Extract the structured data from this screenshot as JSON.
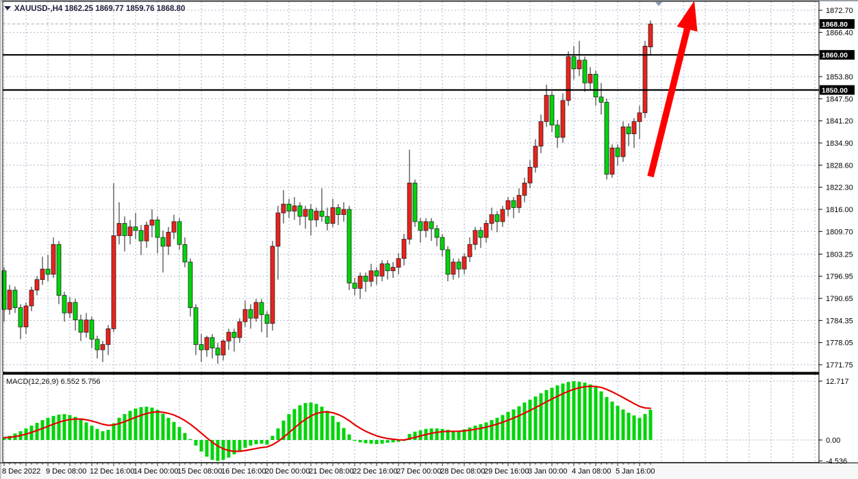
{
  "header": {
    "dropdown_icon": "symbol-dropdown-triangle",
    "symbol": "XAUUSD-",
    "timeframe": "H4",
    "open": "1862.25",
    "high": "1869.77",
    "low": "1859.76",
    "close": "1868.80"
  },
  "colors": {
    "bull_candle": "#e8231c",
    "bear_candle": "#00d40a",
    "wick": "#1a1a1a",
    "grid": "#a9b6c9",
    "panel_border": "#000000",
    "sr_line": "#000000",
    "bid_line": "#9aa6b4",
    "macd_bar": "#00d40a",
    "macd_signal": "#e60000",
    "arrow": "#ff0000",
    "axis_label_bg": "#000000",
    "axis_label_text": "#ffffff",
    "shift_marker": "#8a99b5",
    "strip_bg": "#f7f7f7"
  },
  "price_axis": {
    "ticks": [
      "1872.70",
      "1866.40",
      "1853.80",
      "1847.50",
      "1841.20",
      "1834.90",
      "1828.60",
      "1822.30",
      "1816.00",
      "1809.70",
      "1803.25",
      "1796.95",
      "1790.65",
      "1784.35",
      "1778.05",
      "1771.75"
    ],
    "highlight_labels": [
      {
        "text": "1868.80",
        "price": 1868.8,
        "kind": "bid-price-label"
      },
      {
        "text": "1860.00",
        "price": 1860.0,
        "kind": "line-price-label"
      },
      {
        "text": "1850.00",
        "price": 1850.0,
        "kind": "line-price-label"
      }
    ]
  },
  "macd_axis": {
    "ticks": [
      {
        "text": "12.717",
        "value": 12.717
      },
      {
        "text": "0.00",
        "value": 0
      },
      {
        "text": "-4.536",
        "value": -4.536
      }
    ]
  },
  "time_axis": {
    "labels": [
      {
        "text": "8 Dec 2022",
        "index": 0
      },
      {
        "text": "9 Dec 08:00",
        "index": 8
      },
      {
        "text": "12 Dec 16:00",
        "index": 16
      },
      {
        "text": "14 Dec 00:00",
        "index": 24
      },
      {
        "text": "15 Dec 08:00",
        "index": 32
      },
      {
        "text": "16 Dec 16:00",
        "index": 40
      },
      {
        "text": "20 Dec 00:00",
        "index": 48
      },
      {
        "text": "21 Dec 08:00",
        "index": 56
      },
      {
        "text": "22 Dec 16:00",
        "index": 64
      },
      {
        "text": "27 Dec 00:00",
        "index": 72
      },
      {
        "text": "28 Dec 08:00",
        "index": 80
      },
      {
        "text": "29 Dec 16:00",
        "index": 88
      },
      {
        "text": "3 Jan 00:00",
        "index": 96
      },
      {
        "text": "4 Jan 08:00",
        "index": 104
      },
      {
        "text": "5 Jan 16:00",
        "index": 112
      }
    ]
  },
  "macd_label": {
    "name": "MACD(12,26,9)",
    "macd_value": "6.552",
    "signal_value": "5.756"
  },
  "annotation": {
    "arrow": "thick red up-right arrow from 1850 line area to top of chart",
    "shift_marker": "small gray-blue down triangle at top right (chart shift marker)"
  },
  "chart_data": {
    "type": "candlestick",
    "title": "XAUUSD- H4 gold price chart with MACD(12,26,9)",
    "symbol": "XAUUSD-",
    "timeframe": "H4",
    "note": "bullish candles drawn red, bearish candles drawn green (inverted palette); MACD histogram all green with red signal line",
    "price_axis_range": [
      1771.75,
      1872.7
    ],
    "horizontal_lines": [
      1860.0,
      1850.0
    ],
    "bid_price": 1868.8,
    "ohlc_title_values": [
      1862.25,
      1869.77,
      1859.76,
      1868.8
    ],
    "candles": [
      [
        1798.5,
        1799.5,
        1784.0,
        1787.5
      ],
      [
        1787.5,
        1794.5,
        1786.0,
        1793.0
      ],
      [
        1793.0,
        1794.0,
        1786.5,
        1788.0
      ],
      [
        1788.0,
        1789.0,
        1779.0,
        1782.5
      ],
      [
        1782.5,
        1789.5,
        1780.5,
        1788.5
      ],
      [
        1788.5,
        1794.0,
        1787.0,
        1793.0
      ],
      [
        1793.0,
        1797.0,
        1791.5,
        1796.0
      ],
      [
        1796.0,
        1802.5,
        1794.5,
        1799.0
      ],
      [
        1799.0,
        1803.0,
        1795.5,
        1797.5
      ],
      [
        1797.5,
        1808.0,
        1796.5,
        1806.0
      ],
      [
        1806.0,
        1807.0,
        1789.0,
        1791.5
      ],
      [
        1791.5,
        1792.5,
        1784.0,
        1786.5
      ],
      [
        1786.5,
        1791.0,
        1785.0,
        1789.5
      ],
      [
        1789.5,
        1790.5,
        1781.5,
        1784.5
      ],
      [
        1784.5,
        1786.0,
        1778.5,
        1781.0
      ],
      [
        1781.0,
        1786.5,
        1779.5,
        1784.5
      ],
      [
        1784.5,
        1785.5,
        1776.5,
        1779.0
      ],
      [
        1779.0,
        1780.0,
        1773.5,
        1776.0
      ],
      [
        1776.0,
        1778.5,
        1772.5,
        1777.5
      ],
      [
        1777.5,
        1783.0,
        1774.5,
        1782.0
      ],
      [
        1782.0,
        1823.5,
        1781.0,
        1808.5
      ],
      [
        1808.5,
        1818.0,
        1806.0,
        1812.0
      ],
      [
        1812.0,
        1814.0,
        1804.0,
        1808.5
      ],
      [
        1808.5,
        1813.0,
        1806.0,
        1811.0
      ],
      [
        1811.0,
        1815.0,
        1807.5,
        1810.0
      ],
      [
        1810.0,
        1811.5,
        1803.0,
        1807.0
      ],
      [
        1807.0,
        1812.5,
        1805.0,
        1811.5
      ],
      [
        1811.5,
        1816.0,
        1808.0,
        1813.0
      ],
      [
        1813.0,
        1814.0,
        1803.5,
        1808.0
      ],
      [
        1808.0,
        1810.0,
        1798.0,
        1805.5
      ],
      [
        1805.5,
        1811.0,
        1803.0,
        1809.5
      ],
      [
        1809.5,
        1814.5,
        1807.5,
        1812.5
      ],
      [
        1812.5,
        1813.5,
        1804.5,
        1806.0
      ],
      [
        1806.0,
        1808.0,
        1799.5,
        1801.0
      ],
      [
        1801.0,
        1802.0,
        1785.5,
        1788.0
      ],
      [
        1788.0,
        1789.0,
        1774.5,
        1777.5
      ],
      [
        1777.5,
        1780.5,
        1772.5,
        1776.0
      ],
      [
        1776.0,
        1780.0,
        1774.0,
        1779.5
      ],
      [
        1779.5,
        1780.5,
        1773.5,
        1776.5
      ],
      [
        1776.5,
        1778.0,
        1772.0,
        1774.5
      ],
      [
        1774.5,
        1779.0,
        1773.0,
        1778.5
      ],
      [
        1778.5,
        1782.0,
        1776.0,
        1781.0
      ],
      [
        1781.0,
        1782.0,
        1775.5,
        1779.5
      ],
      [
        1779.5,
        1785.0,
        1778.0,
        1784.0
      ],
      [
        1784.0,
        1790.0,
        1782.5,
        1787.5
      ],
      [
        1787.5,
        1789.0,
        1782.0,
        1785.0
      ],
      [
        1785.0,
        1790.5,
        1784.0,
        1789.5
      ],
      [
        1789.5,
        1790.5,
        1781.0,
        1786.0
      ],
      [
        1786.0,
        1787.0,
        1779.5,
        1783.5
      ],
      [
        1783.5,
        1807.0,
        1781.5,
        1805.5
      ],
      [
        1805.5,
        1817.0,
        1796.0,
        1815.0
      ],
      [
        1815.0,
        1821.5,
        1812.0,
        1817.5
      ],
      [
        1817.5,
        1819.0,
        1813.5,
        1815.5
      ],
      [
        1815.5,
        1819.5,
        1813.0,
        1817.0
      ],
      [
        1817.0,
        1818.0,
        1811.5,
        1814.0
      ],
      [
        1814.0,
        1817.0,
        1810.5,
        1816.0
      ],
      [
        1816.0,
        1817.5,
        1808.5,
        1813.0
      ],
      [
        1813.0,
        1816.5,
        1811.0,
        1815.5
      ],
      [
        1815.5,
        1822.0,
        1812.5,
        1814.0
      ],
      [
        1814.0,
        1816.5,
        1810.0,
        1812.0
      ],
      [
        1812.0,
        1819.0,
        1811.0,
        1816.5
      ],
      [
        1816.5,
        1817.5,
        1811.5,
        1814.5
      ],
      [
        1814.5,
        1818.0,
        1812.5,
        1816.0
      ],
      [
        1816.0,
        1817.0,
        1793.0,
        1795.0
      ],
      [
        1795.0,
        1796.5,
        1791.5,
        1793.5
      ],
      [
        1793.5,
        1798.0,
        1790.5,
        1797.0
      ],
      [
        1797.0,
        1798.0,
        1792.5,
        1795.5
      ],
      [
        1795.5,
        1800.5,
        1794.0,
        1798.5
      ],
      [
        1798.5,
        1799.5,
        1794.5,
        1797.0
      ],
      [
        1797.0,
        1801.5,
        1795.5,
        1800.5
      ],
      [
        1800.5,
        1801.5,
        1796.0,
        1798.5
      ],
      [
        1798.5,
        1801.0,
        1796.5,
        1799.5
      ],
      [
        1799.5,
        1803.5,
        1797.5,
        1802.0
      ],
      [
        1802.0,
        1809.0,
        1800.0,
        1807.5
      ],
      [
        1807.5,
        1833.0,
        1806.0,
        1823.5
      ],
      [
        1823.5,
        1824.5,
        1811.0,
        1812.5
      ],
      [
        1812.5,
        1813.5,
        1806.5,
        1810.0
      ],
      [
        1810.0,
        1813.5,
        1808.0,
        1812.5
      ],
      [
        1812.5,
        1813.5,
        1807.0,
        1810.5
      ],
      [
        1810.5,
        1811.5,
        1805.5,
        1808.0
      ],
      [
        1808.0,
        1809.0,
        1802.5,
        1804.5
      ],
      [
        1804.5,
        1805.5,
        1795.5,
        1797.5
      ],
      [
        1797.5,
        1802.0,
        1796.0,
        1801.0
      ],
      [
        1801.0,
        1802.0,
        1796.5,
        1799.0
      ],
      [
        1799.0,
        1803.5,
        1797.5,
        1802.5
      ],
      [
        1802.5,
        1808.0,
        1801.0,
        1806.0
      ],
      [
        1806.0,
        1811.0,
        1804.5,
        1810.0
      ],
      [
        1810.0,
        1811.0,
        1805.0,
        1808.0
      ],
      [
        1808.0,
        1813.0,
        1806.5,
        1812.0
      ],
      [
        1812.0,
        1816.5,
        1810.0,
        1814.5
      ],
      [
        1814.5,
        1815.5,
        1809.5,
        1812.5
      ],
      [
        1812.5,
        1817.0,
        1811.0,
        1816.0
      ],
      [
        1816.0,
        1819.5,
        1814.0,
        1818.5
      ],
      [
        1818.5,
        1819.5,
        1813.5,
        1816.5
      ],
      [
        1816.5,
        1822.0,
        1815.0,
        1820.0
      ],
      [
        1820.0,
        1825.0,
        1818.0,
        1823.5
      ],
      [
        1823.5,
        1830.0,
        1822.0,
        1828.0
      ],
      [
        1828.0,
        1836.0,
        1826.5,
        1834.0
      ],
      [
        1834.0,
        1843.0,
        1832.0,
        1841.0
      ],
      [
        1841.0,
        1851.5,
        1839.5,
        1848.5
      ],
      [
        1848.5,
        1849.5,
        1838.0,
        1840.0
      ],
      [
        1840.0,
        1841.5,
        1833.5,
        1836.5
      ],
      [
        1836.5,
        1849.0,
        1835.0,
        1847.0
      ],
      [
        1847.0,
        1861.0,
        1845.5,
        1859.5
      ],
      [
        1859.5,
        1862.5,
        1853.0,
        1856.0
      ],
      [
        1856.0,
        1864.0,
        1854.0,
        1858.5
      ],
      [
        1858.5,
        1859.5,
        1849.5,
        1852.0
      ],
      [
        1852.0,
        1856.5,
        1850.0,
        1854.5
      ],
      [
        1854.5,
        1855.5,
        1845.5,
        1848.0
      ],
      [
        1848.0,
        1852.0,
        1843.0,
        1846.5
      ],
      [
        1846.5,
        1847.5,
        1824.5,
        1826.0
      ],
      [
        1826.0,
        1834.5,
        1825.0,
        1833.5
      ],
      [
        1833.5,
        1834.5,
        1828.5,
        1831.0
      ],
      [
        1831.0,
        1841.0,
        1829.5,
        1839.5
      ],
      [
        1839.5,
        1840.5,
        1834.0,
        1837.5
      ],
      [
        1837.5,
        1842.0,
        1833.5,
        1841.0
      ],
      [
        1841.0,
        1845.5,
        1836.0,
        1843.5
      ],
      [
        1843.5,
        1864.0,
        1842.0,
        1862.5
      ],
      [
        1862.25,
        1869.77,
        1859.76,
        1868.8
      ]
    ],
    "macd": {
      "label": "MACD(12,26,9)",
      "macd_value": 6.552,
      "signal_value": 5.756,
      "axis_range": [
        -4.536,
        12.717
      ],
      "signal_ema_period": 9,
      "histogram": [
        0.5,
        0.9,
        1.4,
        1.9,
        2.5,
        3.1,
        3.7,
        4.3,
        4.8,
        5.2,
        5.5,
        5.6,
        5.4,
        5.0,
        4.4,
        3.8,
        3.1,
        2.4,
        1.9,
        2.2,
        3.6,
        4.8,
        5.6,
        6.3,
        6.8,
        7.1,
        7.2,
        7.0,
        6.5,
        5.7,
        4.8,
        3.9,
        2.8,
        1.5,
        0.2,
        -1.2,
        -2.5,
        -3.6,
        -4.3,
        -4.536,
        -4.3,
        -3.8,
        -3.1,
        -2.4,
        -1.7,
        -1.2,
        -0.9,
        -0.8,
        -1.0,
        0.9,
        2.5,
        4.2,
        5.6,
        6.7,
        7.5,
        8.0,
        8.1,
        7.8,
        7.2,
        6.3,
        5.2,
        3.9,
        2.6,
        1.2,
        -0.2,
        -0.5,
        -0.7,
        -0.8,
        -0.9,
        -0.8,
        -0.6,
        -0.5,
        -0.4,
        -0.2,
        1.3,
        1.8,
        2.1,
        2.4,
        2.5,
        2.5,
        2.4,
        2.2,
        1.8,
        2.0,
        2.3,
        2.7,
        3.1,
        3.4,
        3.8,
        4.3,
        4.8,
        5.4,
        6.1,
        6.6,
        7.3,
        8.1,
        8.7,
        9.4,
        10.1,
        10.8,
        11.3,
        11.8,
        12.2,
        12.55,
        12.717,
        12.6,
        12.4,
        12.0,
        11.4,
        10.5,
        9.3,
        8.3,
        7.4,
        6.6,
        5.9,
        5.3,
        4.8,
        5.6,
        6.552
      ]
    }
  }
}
